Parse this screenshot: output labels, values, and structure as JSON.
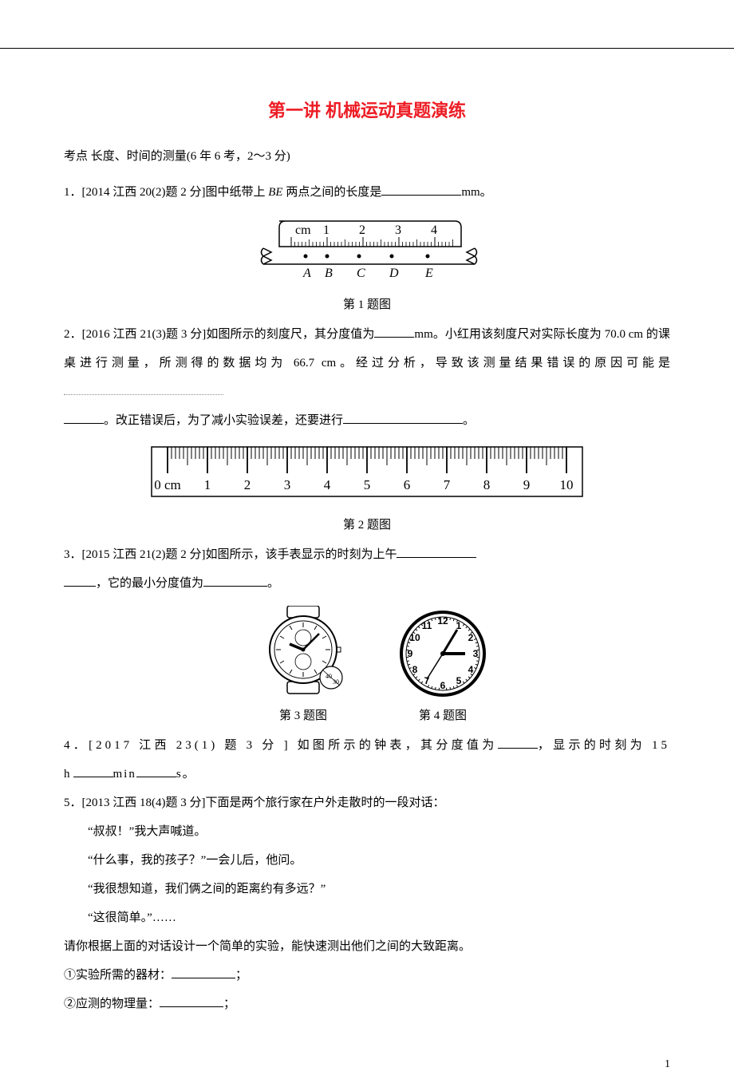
{
  "title": "第一讲 机械运动真题演练",
  "kaodian": "考点 长度、时间的测量(6 年 6 考，2～3 分)",
  "q1": {
    "prefix": "1．[2014 江西 20(2)题 2 分]图中纸带上 ",
    "be": "BE",
    "suffix": " 两点之间的长度是",
    "unit": "mm。"
  },
  "fig1": {
    "caption": "第 1 题图",
    "cm_label": "cm",
    "nums": [
      "1",
      "2",
      "3",
      "4"
    ],
    "letters": [
      "A",
      "B",
      "C",
      "D",
      "E"
    ]
  },
  "q2": {
    "a": "2．[2016 江西 21(3)题 3 分]如图所示的刻度尺，其分度值为",
    "b": "mm。小红用该刻度尺对实际长度为 70.0 cm 的课桌进行测量，所测得的数据均为 66.7 cm。经过分析，导致该测量结果错误的原因可能是",
    "c": "。改正错误后，为了减小实验误差，还要进行",
    "d": "。"
  },
  "fig2": {
    "caption": "第 2 题图",
    "label": "0 cm",
    "nums": [
      "1",
      "2",
      "3",
      "4",
      "5",
      "6",
      "7",
      "8",
      "9",
      "10"
    ]
  },
  "q3": {
    "a": "3．[2015 江西 21(2)题 2 分]如图所示，该手表显示的时刻为上午",
    "b": "，它的最小分度值为",
    "c": "。"
  },
  "fig3": {
    "caption": "第 3 题图"
  },
  "fig4": {
    "caption": "第 4 题图",
    "nums": [
      "12",
      "1",
      "2",
      "3",
      "4",
      "5",
      "6",
      "7",
      "8",
      "9",
      "10",
      "11"
    ]
  },
  "q4": {
    "a": "4．[2017 江西 23(1) 题 3 分 ] 如图所示的钟表，其分度值为",
    "b": "，显示的时刻为 15 h",
    "c": "min",
    "d": "s。"
  },
  "q5": {
    "head": "5．[2013 江西 18(4)题 3 分]下面是两个旅行家在户外走散时的一段对话：",
    "l1": "“叔叔！”我大声喊道。",
    "l2": "“什么事，我的孩子？”一会儿后，他问。",
    "l3": "“我很想知道，我们俩之间的距离约有多远？”",
    "l4": "“这很简单。”……",
    "ask": "请你根据上面的对话设计一个简单的实验，能快速测出他们之间的大致距离。",
    "i1a": "①实验所需的器材：",
    "i1b": "；",
    "i2a": "②应测的物理量：",
    "i2b": "；"
  },
  "page_num": "1",
  "colors": {
    "title": "#ed1c24",
    "text": "#000000",
    "bg": "#ffffff"
  }
}
